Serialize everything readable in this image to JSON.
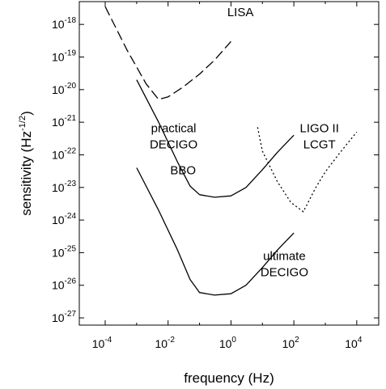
{
  "chart_data": {
    "type": "line",
    "title": "",
    "xlabel": "frequency (Hz)",
    "ylabel": "sensitivity (Hz",
    "ylabel_exponent": "-1/2",
    "ylabel_close": ")",
    "x_scale": "log",
    "y_scale": "log",
    "xlim": [
      1.5e-05,
      50000
    ],
    "ylim": [
      6e-28,
      5e-18
    ],
    "x_ticks": [
      {
        "value": 0.0001,
        "base": "10",
        "exp": "-4"
      },
      {
        "value": 0.01,
        "base": "10",
        "exp": "-2"
      },
      {
        "value": 1,
        "base": "10",
        "exp": "0"
      },
      {
        "value": 100,
        "base": "10",
        "exp": "2"
      },
      {
        "value": 10000,
        "base": "10",
        "exp": "4"
      }
    ],
    "y_ticks": [
      {
        "value": 1e-27,
        "base": "10",
        "exp": "-27"
      },
      {
        "value": 1e-26,
        "base": "10",
        "exp": "-26"
      },
      {
        "value": 1e-25,
        "base": "10",
        "exp": "-25"
      },
      {
        "value": 1e-24,
        "base": "10",
        "exp": "-24"
      },
      {
        "value": 1e-23,
        "base": "10",
        "exp": "-23"
      },
      {
        "value": 1e-22,
        "base": "10",
        "exp": "-22"
      },
      {
        "value": 1e-21,
        "base": "10",
        "exp": "-21"
      },
      {
        "value": 1e-20,
        "base": "10",
        "exp": "-20"
      },
      {
        "value": 1e-19,
        "base": "10",
        "exp": "-19"
      },
      {
        "value": 1e-18,
        "base": "10",
        "exp": "-18"
      }
    ],
    "grid": false,
    "series": [
      {
        "style": "dashed",
        "points": [
          [
            0.0001,
            3.5e-18
          ],
          [
            0.0005,
            1.6e-19
          ],
          [
            0.002,
            1.5e-20
          ],
          [
            0.005,
            5e-21
          ],
          [
            0.01,
            6e-21
          ],
          [
            0.03,
            1.2e-20
          ],
          [
            0.1,
            3e-20
          ],
          [
            0.3,
            8e-20
          ],
          [
            1,
            3e-19
          ]
        ]
      },
      {
        "style": "solid",
        "points": [
          [
            0.001,
            2e-20
          ],
          [
            0.005,
            1e-21
          ],
          [
            0.02,
            6e-23
          ],
          [
            0.05,
            1.1e-23
          ],
          [
            0.1,
            6e-24
          ],
          [
            0.3,
            5e-24
          ],
          [
            1,
            5.5e-24
          ],
          [
            3,
            1e-23
          ],
          [
            10,
            3.5e-23
          ],
          [
            30,
            1.2e-22
          ],
          [
            100,
            4e-22
          ]
        ]
      },
      {
        "style": "solid",
        "points": [
          [
            0.001,
            4e-23
          ],
          [
            0.005,
            2e-24
          ],
          [
            0.02,
            1.2e-25
          ],
          [
            0.05,
            1.5e-26
          ],
          [
            0.1,
            6e-27
          ],
          [
            0.3,
            5e-27
          ],
          [
            1,
            5.5e-27
          ],
          [
            3,
            1e-26
          ],
          [
            10,
            3.5e-26
          ],
          [
            30,
            1.2e-25
          ],
          [
            100,
            4e-25
          ]
        ]
      },
      {
        "style": "dotted",
        "points": [
          [
            7,
            7e-22
          ],
          [
            10,
            1.3e-22
          ],
          [
            30,
            1.5e-23
          ],
          [
            80,
            3.5e-24
          ],
          [
            200,
            1.8e-24
          ],
          [
            500,
            1e-23
          ],
          [
            1000,
            3e-23
          ],
          [
            3000,
            1.2e-22
          ],
          [
            10000,
            5e-22
          ]
        ]
      }
    ],
    "annotations": [
      {
        "id": "lisa",
        "lines": [
          "LISA"
        ],
        "x": 2,
        "y": 1.8e-18
      },
      {
        "id": "practical-decigo",
        "lines": [
          "practical",
          "DECIGO"
        ],
        "x": 0.015,
        "y": 5e-22
      },
      {
        "id": "bbo",
        "lines": [
          "BBO"
        ],
        "x": 0.03,
        "y": 2.5e-23
      },
      {
        "id": "ligo-lcgt",
        "lines": [
          "LIGO II",
          "LCGT"
        ],
        "x": 650,
        "y": 5e-22
      },
      {
        "id": "ultimate-decigo",
        "lines": [
          "ultimate",
          "DECIGO"
        ],
        "x": 50,
        "y": 6e-26
      }
    ]
  }
}
